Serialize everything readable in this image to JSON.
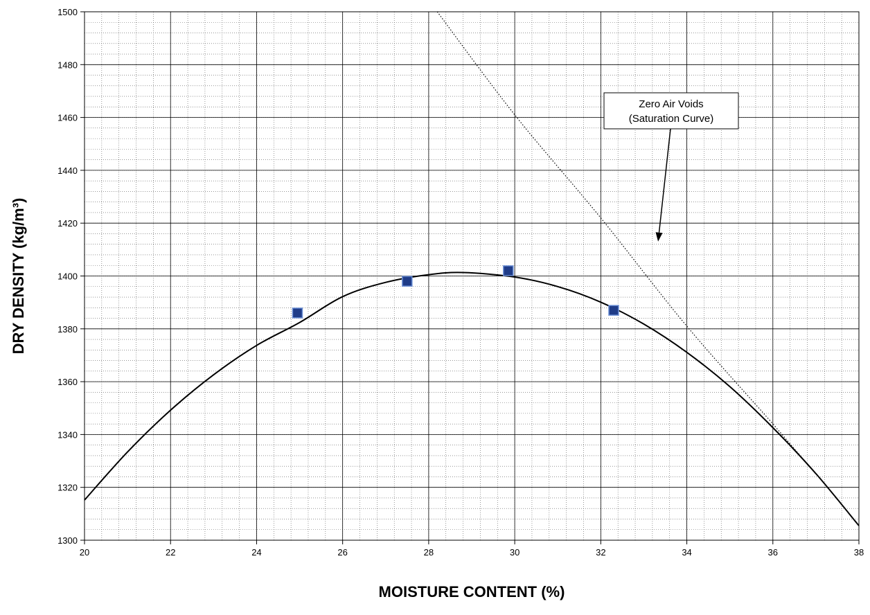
{
  "chart_data": {
    "type": "scatter",
    "title": "",
    "xlabel": "MOISTURE CONTENT (%)",
    "ylabel": "DRY DENSITY (kg/m³)",
    "xlim": [
      20,
      38
    ],
    "ylim": [
      1300,
      1500
    ],
    "x_major_ticks": [
      20,
      22,
      24,
      26,
      28,
      30,
      32,
      34,
      36,
      38
    ],
    "y_major_ticks": [
      1300,
      1320,
      1340,
      1360,
      1380,
      1400,
      1420,
      1440,
      1460,
      1480,
      1500
    ],
    "x_minor_step": 0.4,
    "y_minor_step": 4,
    "grid": true,
    "series": [
      {
        "kind": "points",
        "marker": "square",
        "color": "#1f3c88",
        "x": [
          24.95,
          27.5,
          29.85,
          32.3
        ],
        "y": [
          1386,
          1398,
          1402,
          1387
        ]
      },
      {
        "kind": "fitted-curve",
        "style": "solid",
        "color": "#000000",
        "x": [
          20,
          21,
          22,
          23,
          24,
          25,
          26,
          27,
          28,
          28.8,
          30,
          31,
          32,
          33,
          34,
          35,
          36,
          37,
          38
        ],
        "y": [
          1315.2,
          1333.4,
          1349.2,
          1362.6,
          1373.7,
          1382.4,
          1392.2,
          1397.6,
          1400.5,
          1401.3,
          1399.6,
          1396,
          1390.1,
          1381.8,
          1371.1,
          1358.1,
          1342.6,
          1325.2,
          1305.5
        ]
      },
      {
        "kind": "zero-air-voids",
        "style": "dotted",
        "color": "#000000",
        "x": [
          28.2,
          30,
          32,
          34,
          36,
          37
        ],
        "y": [
          1500,
          1461,
          1422,
          1381,
          1344,
          1325
        ]
      }
    ],
    "annotation": {
      "lines": [
        "Zero Air Voids",
        "(Saturation Curve)"
      ],
      "arrow_target": {
        "x": 33.3,
        "y": 1412
      }
    }
  }
}
